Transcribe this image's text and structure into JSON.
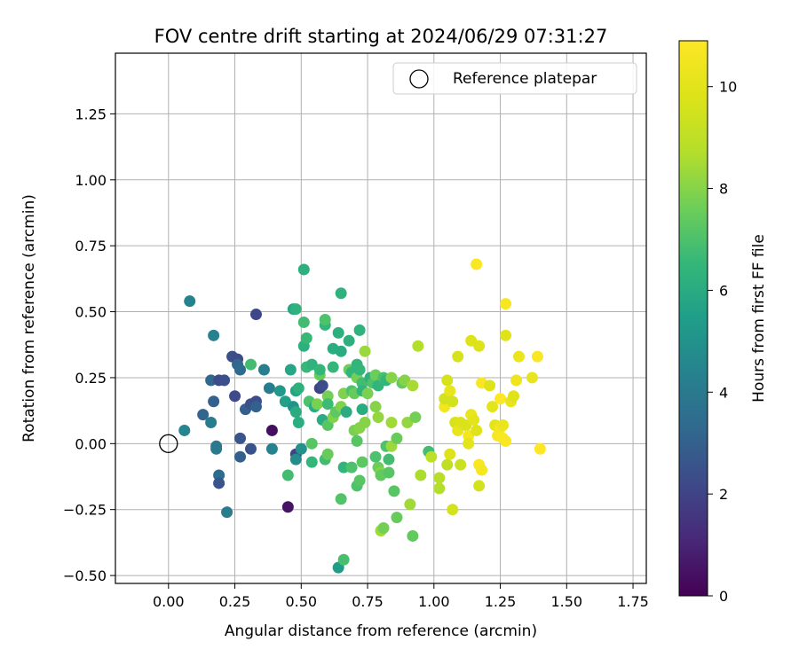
{
  "chart_data": {
    "type": "scatter",
    "title": "FOV centre drift starting at 2024/06/29 07:31:27",
    "xlabel": "Angular distance from reference (arcmin)",
    "ylabel": "Rotation from reference (arcmin)",
    "xlim": [
      -0.2,
      1.8
    ],
    "ylim": [
      -0.53,
      1.48
    ],
    "xticks": [
      "0.00",
      "0.25",
      "0.50",
      "0.75",
      "1.00",
      "1.25",
      "1.50",
      "1.75"
    ],
    "yticks": [
      "−0.50",
      "−0.25",
      "0.00",
      "0.25",
      "0.50",
      "0.75",
      "1.00",
      "1.25"
    ],
    "grid": true,
    "legend": {
      "placement": "top-right",
      "label": "Reference platepar"
    },
    "reference": {
      "x": 0.0,
      "y": 0.0
    },
    "colorbar": {
      "label": "Hours from first FF file",
      "range": [
        0,
        10.9
      ],
      "ticks": [
        "0",
        "2",
        "4",
        "6",
        "8",
        "10"
      ],
      "colormap": "viridis"
    },
    "points": [
      {
        "x": 0.06,
        "y": 0.05,
        "c": 4.5
      },
      {
        "x": 0.08,
        "y": 0.54,
        "c": 4.4
      },
      {
        "x": 0.17,
        "y": 0.41,
        "c": 4.3
      },
      {
        "x": 0.16,
        "y": 0.24,
        "c": 3.3
      },
      {
        "x": 0.17,
        "y": 0.16,
        "c": 3.0
      },
      {
        "x": 0.13,
        "y": 0.11,
        "c": 3.2
      },
      {
        "x": 0.16,
        "y": 0.08,
        "c": 4.1
      },
      {
        "x": 0.18,
        "y": -0.02,
        "c": 4.2
      },
      {
        "x": 0.18,
        "y": -0.01,
        "c": 4.0
      },
      {
        "x": 0.19,
        "y": -0.12,
        "c": 3.5
      },
      {
        "x": 0.19,
        "y": -0.15,
        "c": 2.6
      },
      {
        "x": 0.22,
        "y": -0.26,
        "c": 4.1
      },
      {
        "x": 0.19,
        "y": 0.24,
        "c": 2.2
      },
      {
        "x": 0.21,
        "y": 0.24,
        "c": 2.4
      },
      {
        "x": 0.24,
        "y": 0.33,
        "c": 2.4
      },
      {
        "x": 0.26,
        "y": 0.32,
        "c": 2.2
      },
      {
        "x": 0.26,
        "y": 0.3,
        "c": 3.2
      },
      {
        "x": 0.27,
        "y": 0.28,
        "c": 3.4
      },
      {
        "x": 0.25,
        "y": 0.18,
        "c": 2.2
      },
      {
        "x": 0.27,
        "y": 0.02,
        "c": 2.6
      },
      {
        "x": 0.27,
        "y": -0.05,
        "c": 3.0
      },
      {
        "x": 0.29,
        "y": 0.13,
        "c": 3.0
      },
      {
        "x": 0.31,
        "y": 0.15,
        "c": 2.5
      },
      {
        "x": 0.31,
        "y": -0.02,
        "c": 2.5
      },
      {
        "x": 0.31,
        "y": 0.3,
        "c": 6.8
      },
      {
        "x": 0.33,
        "y": 0.49,
        "c": 2.1
      },
      {
        "x": 0.33,
        "y": 0.16,
        "c": 2.3
      },
      {
        "x": 0.33,
        "y": 0.14,
        "c": 3.0
      },
      {
        "x": 0.36,
        "y": 0.28,
        "c": 4.2
      },
      {
        "x": 0.38,
        "y": 0.21,
        "c": 4.2
      },
      {
        "x": 0.39,
        "y": 0.05,
        "c": 0.4
      },
      {
        "x": 0.39,
        "y": -0.02,
        "c": 4.4
      },
      {
        "x": 0.42,
        "y": 0.2,
        "c": 5.2
      },
      {
        "x": 0.44,
        "y": 0.16,
        "c": 5.6
      },
      {
        "x": 0.45,
        "y": -0.24,
        "c": 0.5
      },
      {
        "x": 0.45,
        "y": -0.12,
        "c": 6.8
      },
      {
        "x": 0.46,
        "y": 0.28,
        "c": 5.8
      },
      {
        "x": 0.47,
        "y": 0.51,
        "c": 5.8
      },
      {
        "x": 0.48,
        "y": 0.51,
        "c": 6.3
      },
      {
        "x": 0.47,
        "y": 0.14,
        "c": 5.0
      },
      {
        "x": 0.48,
        "y": 0.12,
        "c": 6.0
      },
      {
        "x": 0.48,
        "y": 0.2,
        "c": 5.7
      },
      {
        "x": 0.48,
        "y": -0.04,
        "c": 2.0
      },
      {
        "x": 0.48,
        "y": -0.06,
        "c": 4.8
      },
      {
        "x": 0.49,
        "y": 0.21,
        "c": 6.2
      },
      {
        "x": 0.49,
        "y": 0.08,
        "c": 6.1
      },
      {
        "x": 0.5,
        "y": -0.02,
        "c": 5.0
      },
      {
        "x": 0.51,
        "y": 0.66,
        "c": 6.2
      },
      {
        "x": 0.51,
        "y": 0.46,
        "c": 6.8
      },
      {
        "x": 0.51,
        "y": 0.37,
        "c": 6.2
      },
      {
        "x": 0.52,
        "y": 0.4,
        "c": 6.6
      },
      {
        "x": 0.52,
        "y": 0.29,
        "c": 6.6
      },
      {
        "x": 0.53,
        "y": 0.16,
        "c": 7.0
      },
      {
        "x": 0.54,
        "y": 0.3,
        "c": 6.3
      },
      {
        "x": 0.54,
        "y": 0.0,
        "c": 7.2
      },
      {
        "x": 0.54,
        "y": -0.07,
        "c": 6.5
      },
      {
        "x": 0.55,
        "y": 0.14,
        "c": 6.0
      },
      {
        "x": 0.56,
        "y": 0.15,
        "c": 7.8
      },
      {
        "x": 0.57,
        "y": 0.26,
        "c": 7.5
      },
      {
        "x": 0.57,
        "y": 0.21,
        "c": 1.9
      },
      {
        "x": 0.57,
        "y": 0.28,
        "c": 6.5
      },
      {
        "x": 0.58,
        "y": 0.22,
        "c": 2.3
      },
      {
        "x": 0.58,
        "y": 0.09,
        "c": 6.0
      },
      {
        "x": 0.59,
        "y": 0.45,
        "c": 6.5
      },
      {
        "x": 0.59,
        "y": 0.47,
        "c": 7.0
      },
      {
        "x": 0.59,
        "y": -0.06,
        "c": 6.8
      },
      {
        "x": 0.6,
        "y": -0.04,
        "c": 7.5
      },
      {
        "x": 0.6,
        "y": 0.07,
        "c": 7.2
      },
      {
        "x": 0.6,
        "y": 0.18,
        "c": 7.7
      },
      {
        "x": 0.6,
        "y": 0.15,
        "c": 6.7
      },
      {
        "x": 0.62,
        "y": 0.36,
        "c": 6.1
      },
      {
        "x": 0.62,
        "y": 0.29,
        "c": 6.5
      },
      {
        "x": 0.62,
        "y": 0.1,
        "c": 7.9
      },
      {
        "x": 0.63,
        "y": 0.12,
        "c": 7.3
      },
      {
        "x": 0.64,
        "y": 0.42,
        "c": 6.2
      },
      {
        "x": 0.64,
        "y": -0.47,
        "c": 5.4
      },
      {
        "x": 0.65,
        "y": 0.57,
        "c": 6.3
      },
      {
        "x": 0.65,
        "y": 0.35,
        "c": 6.0
      },
      {
        "x": 0.65,
        "y": -0.21,
        "c": 7.1
      },
      {
        "x": 0.65,
        "y": 0.14,
        "c": 7.9
      },
      {
        "x": 0.66,
        "y": 0.19,
        "c": 7.9
      },
      {
        "x": 0.66,
        "y": -0.44,
        "c": 6.9
      },
      {
        "x": 0.66,
        "y": -0.09,
        "c": 6.4
      },
      {
        "x": 0.67,
        "y": 0.12,
        "c": 6.0
      },
      {
        "x": 0.68,
        "y": 0.39,
        "c": 6.2
      },
      {
        "x": 0.68,
        "y": 0.28,
        "c": 7.6
      },
      {
        "x": 0.69,
        "y": 0.27,
        "c": 6.5
      },
      {
        "x": 0.69,
        "y": 0.2,
        "c": 7.0
      },
      {
        "x": 0.69,
        "y": -0.09,
        "c": 7.0
      },
      {
        "x": 0.7,
        "y": 0.05,
        "c": 7.8
      },
      {
        "x": 0.7,
        "y": 0.19,
        "c": 7.5
      },
      {
        "x": 0.71,
        "y": 0.3,
        "c": 6.4
      },
      {
        "x": 0.71,
        "y": 0.25,
        "c": 7.7
      },
      {
        "x": 0.71,
        "y": 0.01,
        "c": 7.2
      },
      {
        "x": 0.71,
        "y": -0.16,
        "c": 7.0
      },
      {
        "x": 0.72,
        "y": 0.43,
        "c": 6.3
      },
      {
        "x": 0.72,
        "y": 0.28,
        "c": 6.5
      },
      {
        "x": 0.72,
        "y": -0.14,
        "c": 7.2
      },
      {
        "x": 0.72,
        "y": 0.06,
        "c": 8.0
      },
      {
        "x": 0.73,
        "y": 0.23,
        "c": 6.8
      },
      {
        "x": 0.73,
        "y": 0.2,
        "c": 6.4
      },
      {
        "x": 0.73,
        "y": 0.13,
        "c": 6.0
      },
      {
        "x": 0.73,
        "y": -0.07,
        "c": 7.3
      },
      {
        "x": 0.74,
        "y": 0.35,
        "c": 8.3
      },
      {
        "x": 0.74,
        "y": 0.08,
        "c": 8.0
      },
      {
        "x": 0.75,
        "y": 0.19,
        "c": 7.8
      },
      {
        "x": 0.76,
        "y": 0.25,
        "c": 6.2
      },
      {
        "x": 0.77,
        "y": 0.23,
        "c": 7.0
      },
      {
        "x": 0.78,
        "y": 0.14,
        "c": 8.0
      },
      {
        "x": 0.78,
        "y": -0.05,
        "c": 7.0
      },
      {
        "x": 0.78,
        "y": 0.26,
        "c": 7.6
      },
      {
        "x": 0.79,
        "y": 0.1,
        "c": 8.2
      },
      {
        "x": 0.79,
        "y": -0.09,
        "c": 7.6
      },
      {
        "x": 0.79,
        "y": 0.22,
        "c": 6.4
      },
      {
        "x": 0.8,
        "y": -0.11,
        "c": 8.0
      },
      {
        "x": 0.8,
        "y": -0.33,
        "c": 8.4
      },
      {
        "x": 0.8,
        "y": -0.12,
        "c": 7.4
      },
      {
        "x": 0.81,
        "y": -0.32,
        "c": 7.7
      },
      {
        "x": 0.81,
        "y": 0.25,
        "c": 6.9
      },
      {
        "x": 0.82,
        "y": -0.01,
        "c": 7.0
      },
      {
        "x": 0.82,
        "y": 0.24,
        "c": 6.5
      },
      {
        "x": 0.83,
        "y": -0.06,
        "c": 6.8
      },
      {
        "x": 0.83,
        "y": -0.11,
        "c": 7.2
      },
      {
        "x": 0.84,
        "y": 0.08,
        "c": 8.4
      },
      {
        "x": 0.84,
        "y": -0.01,
        "c": 8.3
      },
      {
        "x": 0.84,
        "y": 0.25,
        "c": 8.0
      },
      {
        "x": 0.85,
        "y": -0.18,
        "c": 7.2
      },
      {
        "x": 0.86,
        "y": 0.02,
        "c": 7.5
      },
      {
        "x": 0.86,
        "y": -0.28,
        "c": 7.5
      },
      {
        "x": 0.88,
        "y": 0.23,
        "c": 7.4
      },
      {
        "x": 0.89,
        "y": 0.24,
        "c": 8.0
      },
      {
        "x": 0.9,
        "y": 0.08,
        "c": 8.2
      },
      {
        "x": 0.91,
        "y": -0.23,
        "c": 8.4
      },
      {
        "x": 0.92,
        "y": -0.35,
        "c": 7.4
      },
      {
        "x": 0.92,
        "y": 0.22,
        "c": 8.5
      },
      {
        "x": 0.93,
        "y": 0.1,
        "c": 7.7
      },
      {
        "x": 0.94,
        "y": 0.37,
        "c": 8.7
      },
      {
        "x": 0.95,
        "y": -0.12,
        "c": 8.6
      },
      {
        "x": 0.98,
        "y": -0.03,
        "c": 6.8
      },
      {
        "x": 0.99,
        "y": -0.05,
        "c": 8.9
      },
      {
        "x": 1.02,
        "y": -0.13,
        "c": 8.8
      },
      {
        "x": 1.02,
        "y": -0.17,
        "c": 8.7
      },
      {
        "x": 1.04,
        "y": 0.14,
        "c": 10.5
      },
      {
        "x": 1.04,
        "y": 0.17,
        "c": 9.5
      },
      {
        "x": 1.05,
        "y": 0.24,
        "c": 9.6
      },
      {
        "x": 1.05,
        "y": -0.08,
        "c": 9.0
      },
      {
        "x": 1.06,
        "y": 0.2,
        "c": 10.2
      },
      {
        "x": 1.06,
        "y": -0.04,
        "c": 9.8
      },
      {
        "x": 1.07,
        "y": 0.16,
        "c": 9.5
      },
      {
        "x": 1.07,
        "y": -0.25,
        "c": 9.5
      },
      {
        "x": 1.08,
        "y": 0.08,
        "c": 9.6
      },
      {
        "x": 1.09,
        "y": 0.33,
        "c": 9.6
      },
      {
        "x": 1.09,
        "y": 0.05,
        "c": 10.2
      },
      {
        "x": 1.1,
        "y": 0.08,
        "c": 9.8
      },
      {
        "x": 1.1,
        "y": -0.08,
        "c": 9.3
      },
      {
        "x": 1.12,
        "y": 0.07,
        "c": 9.7
      },
      {
        "x": 1.13,
        "y": 0.03,
        "c": 10.6
      },
      {
        "x": 1.13,
        "y": 0.0,
        "c": 10.0
      },
      {
        "x": 1.14,
        "y": 0.39,
        "c": 9.8
      },
      {
        "x": 1.14,
        "y": 0.11,
        "c": 10.3
      },
      {
        "x": 1.15,
        "y": 0.09,
        "c": 10.0
      },
      {
        "x": 1.16,
        "y": 0.68,
        "c": 10.8
      },
      {
        "x": 1.16,
        "y": 0.05,
        "c": 9.9
      },
      {
        "x": 1.17,
        "y": 0.37,
        "c": 9.8
      },
      {
        "x": 1.17,
        "y": -0.16,
        "c": 9.5
      },
      {
        "x": 1.17,
        "y": -0.08,
        "c": 10.8
      },
      {
        "x": 1.18,
        "y": 0.23,
        "c": 10.8
      },
      {
        "x": 1.18,
        "y": -0.1,
        "c": 10.6
      },
      {
        "x": 1.21,
        "y": 0.22,
        "c": 9.8
      },
      {
        "x": 1.22,
        "y": 0.14,
        "c": 10.0
      },
      {
        "x": 1.23,
        "y": 0.07,
        "c": 10.0
      },
      {
        "x": 1.24,
        "y": 0.03,
        "c": 10.7
      },
      {
        "x": 1.25,
        "y": 0.06,
        "c": 10.6
      },
      {
        "x": 1.25,
        "y": 0.17,
        "c": 10.9
      },
      {
        "x": 1.26,
        "y": 0.07,
        "c": 10.3
      },
      {
        "x": 1.26,
        "y": 0.02,
        "c": 10.8
      },
      {
        "x": 1.27,
        "y": 0.53,
        "c": 10.7
      },
      {
        "x": 1.27,
        "y": 0.41,
        "c": 9.9
      },
      {
        "x": 1.27,
        "y": 0.01,
        "c": 10.8
      },
      {
        "x": 1.29,
        "y": 0.16,
        "c": 10.2
      },
      {
        "x": 1.3,
        "y": 0.18,
        "c": 9.9
      },
      {
        "x": 1.31,
        "y": 0.24,
        "c": 10.4
      },
      {
        "x": 1.32,
        "y": 0.33,
        "c": 10.3
      },
      {
        "x": 1.37,
        "y": 0.25,
        "c": 10.2
      },
      {
        "x": 1.39,
        "y": 0.33,
        "c": 10.8
      },
      {
        "x": 1.4,
        "y": -0.02,
        "c": 10.9
      }
    ]
  }
}
